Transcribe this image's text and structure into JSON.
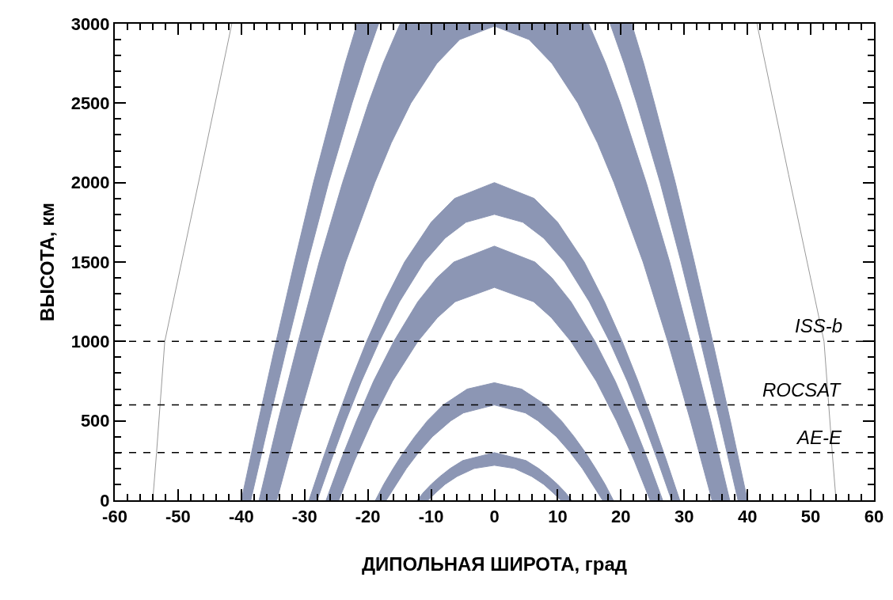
{
  "chart_data": {
    "type": "area",
    "xlabel": "ДИПОЛЬНАЯ ШИРОТА, град",
    "ylabel": "ВЫСОТА, км",
    "xlim": [
      -60,
      60
    ],
    "xticks": [
      -60,
      -50,
      -40,
      -30,
      -20,
      -10,
      0,
      10,
      20,
      30,
      40,
      50,
      60
    ],
    "ylim": [
      0,
      3000
    ],
    "yticks": [
      0,
      500,
      1000,
      1500,
      2000,
      2500,
      3000
    ],
    "marker": "none",
    "series": [
      {
        "type": "line",
        "color": "#999999",
        "x": [
          -54,
          -53.4,
          -52.1,
          -46.5,
          -41.5
        ],
        "values": [
          0,
          300,
          1000,
          2050,
          3000
        ]
      },
      {
        "type": "line",
        "color": "#999999",
        "x": [
          54,
          53.4,
          52.1,
          46.5,
          41.5
        ],
        "values": [
          0,
          300,
          1000,
          2050,
          3000
        ]
      },
      {
        "color": "#8c96b4",
        "x": [
          -12.2,
          -11.2,
          -10.0,
          -8.6,
          -7.0,
          -5.0,
          0,
          5.0,
          7.0,
          8.6,
          10.0,
          11.2,
          12.2,
          10.5,
          9.2,
          7.8,
          5.9,
          3.2,
          0,
          -3.2,
          -5.9,
          -7.8,
          -9.2,
          -10.5
        ],
        "values": [
          0,
          50,
          100,
          150,
          200,
          250,
          300,
          250,
          200,
          150,
          100,
          50,
          0,
          0,
          50,
          100,
          150,
          200,
          220,
          200,
          150,
          100,
          50,
          0
        ]
      },
      {
        "color": "#8c96b4",
        "x": [
          -18.8,
          -17.5,
          -16.0,
          -14.4,
          -12.6,
          -10.6,
          -8.1,
          -4.3,
          0,
          4.3,
          8.1,
          10.6,
          12.6,
          14.4,
          16.0,
          17.5,
          18.8,
          17.1,
          15.5,
          13.9,
          12.0,
          9.8,
          6.9,
          4.9,
          0,
          -4.9,
          -6.9,
          -9.8,
          -12.0,
          -13.9,
          -15.5,
          -17.1
        ],
        "values": [
          0,
          100,
          200,
          300,
          400,
          500,
          600,
          700,
          740,
          700,
          600,
          500,
          400,
          300,
          200,
          100,
          0,
          0,
          100,
          200,
          300,
          400,
          500,
          550,
          600,
          550,
          500,
          400,
          300,
          200,
          100,
          0
        ]
      },
      {
        "color": "#8c96b4",
        "x": [
          -26.6,
          -24.3,
          -21.8,
          -19.1,
          -15.9,
          -12.1,
          -9.1,
          -6.4,
          0,
          6.4,
          9.1,
          12.1,
          15.9,
          19.1,
          21.8,
          24.3,
          26.6,
          24.6,
          22.1,
          19.3,
          16.1,
          12.1,
          9.0,
          6.2,
          0,
          -6.2,
          -9.0,
          -12.1,
          -16.1,
          -19.3,
          -22.1,
          -24.6
        ],
        "values": [
          0,
          250,
          500,
          750,
          1000,
          1250,
          1400,
          1500,
          1600,
          1500,
          1400,
          1250,
          1000,
          750,
          500,
          250,
          0,
          0,
          250,
          500,
          750,
          1000,
          1150,
          1250,
          1340,
          1250,
          1150,
          1000,
          750,
          500,
          250,
          0
        ]
      },
      {
        "color": "#8c96b4",
        "x": [
          -29.3,
          -27.2,
          -25.0,
          -22.7,
          -20.2,
          -17.4,
          -14.2,
          -10.0,
          -6.3,
          0,
          6.3,
          10.0,
          14.2,
          17.4,
          20.2,
          22.7,
          25.0,
          27.2,
          29.3,
          28.0,
          25.8,
          23.5,
          21.0,
          18.2,
          15.0,
          11.1,
          7.8,
          4.5,
          0,
          -4.5,
          -7.8,
          -11.1,
          -15.0,
          -18.2,
          -21.0,
          -23.5,
          -25.8,
          -28.0
        ],
        "values": [
          0,
          250,
          500,
          750,
          1000,
          1250,
          1500,
          1750,
          1900,
          2000,
          1900,
          1750,
          1500,
          1250,
          1000,
          750,
          500,
          250,
          0,
          0,
          250,
          500,
          750,
          1000,
          1250,
          1500,
          1650,
          1750,
          1800,
          1750,
          1650,
          1500,
          1250,
          1000,
          750,
          500,
          250,
          0
        ]
      },
      {
        "color": "#8c96b4",
        "x": [
          -37.2,
          -34.2,
          -31.0,
          -27.7,
          -24.0,
          -19.9,
          -17.6,
          -14.9,
          14.9,
          17.6,
          19.9,
          24.0,
          27.7,
          31.0,
          34.2,
          37.2,
          34.4,
          31.0,
          27.4,
          23.5,
          18.9,
          16.3,
          13.2,
          9.1,
          5.5,
          0,
          -5.5,
          -9.1,
          -13.2,
          -16.3,
          -18.9,
          -23.5,
          -27.4,
          -31.0,
          -34.4
        ],
        "values": [
          0,
          500,
          1000,
          1500,
          2000,
          2500,
          2750,
          3000,
          3000,
          2750,
          2500,
          2000,
          1500,
          1000,
          500,
          0,
          0,
          500,
          1000,
          1500,
          2000,
          2250,
          2500,
          2750,
          2900,
          2985,
          2900,
          2750,
          2500,
          2250,
          2000,
          1500,
          1000,
          500,
          0
        ]
      },
      {
        "color": "#8c96b4",
        "x": [
          -40.0,
          -37.3,
          -34.5,
          -31.6,
          -28.6,
          -25.3,
          -23.6,
          -21.7,
          -18.3,
          -20.5,
          -22.5,
          -26.2,
          -29.5,
          -32.6,
          -35.6,
          -38.5
        ],
        "values": [
          0,
          500,
          1000,
          1500,
          2000,
          2500,
          2750,
          3000,
          3000,
          2750,
          2500,
          2000,
          1500,
          1000,
          500,
          0
        ]
      },
      {
        "color": "#8c96b4",
        "x": [
          40.0,
          37.3,
          34.5,
          31.6,
          28.6,
          25.3,
          23.6,
          21.7,
          18.3,
          20.5,
          22.5,
          26.2,
          29.5,
          32.6,
          35.6,
          38.5
        ],
        "values": [
          0,
          500,
          1000,
          1500,
          2000,
          2500,
          2750,
          3000,
          3000,
          2750,
          2500,
          2000,
          1500,
          1000,
          500,
          0
        ]
      }
    ],
    "ref_lines": [
      {
        "axis": "y",
        "value": 1000,
        "label": "ISS-b",
        "color": "#000000",
        "line_style": "dashed"
      },
      {
        "axis": "y",
        "value": 600,
        "label": "ROCSAT",
        "color": "#000000",
        "line_style": "dashed"
      },
      {
        "axis": "y",
        "value": 300,
        "label": "AE-E",
        "color": "#000000",
        "line_style": "dashed"
      }
    ]
  }
}
